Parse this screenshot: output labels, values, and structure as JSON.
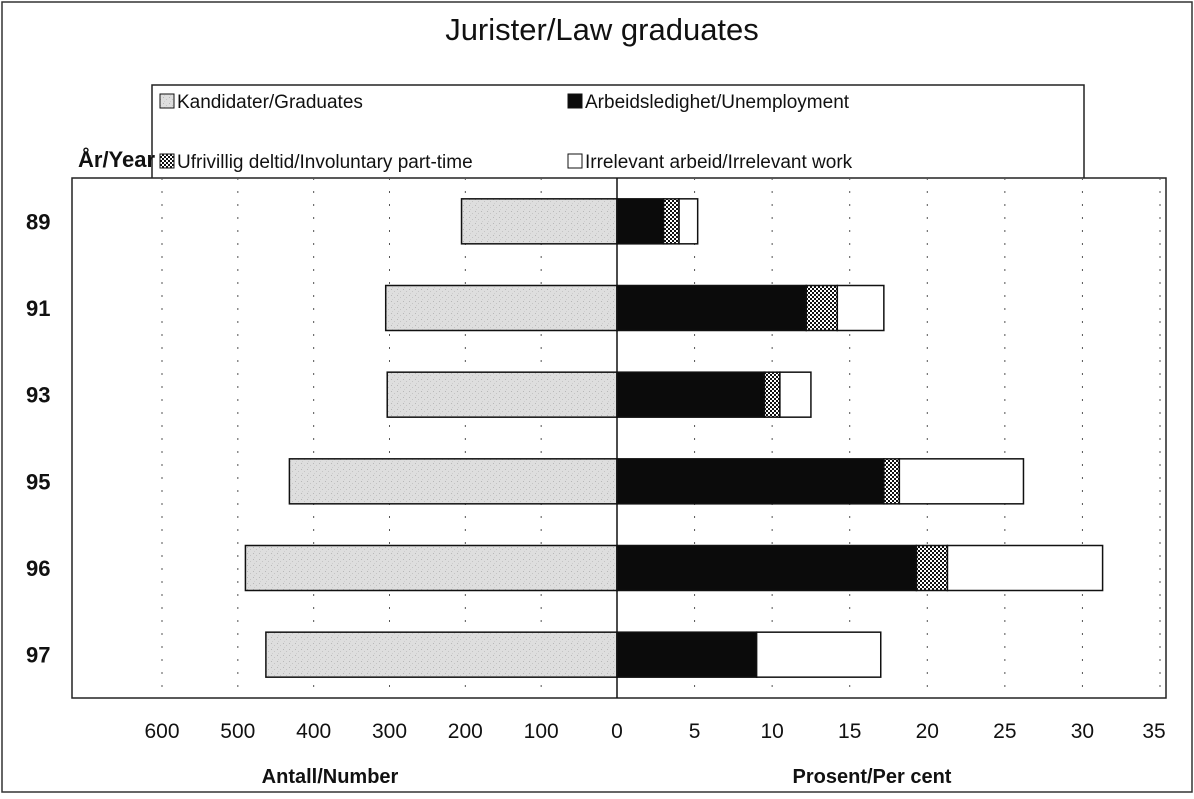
{
  "chart_data": {
    "type": "bar",
    "title": "Jurister/Law graduates",
    "category_axis_label": "År/Year",
    "categories": [
      "89",
      "91",
      "93",
      "95",
      "96",
      "97"
    ],
    "left_panel": {
      "xlabel": "Antall/Number",
      "xlim": [
        0,
        600
      ],
      "ticks": [
        "600",
        "500",
        "400",
        "300",
        "200",
        "100",
        "0"
      ],
      "series": [
        {
          "name": "Kandidater/Graduates",
          "values": [
            205,
            305,
            303,
            432,
            490,
            463
          ]
        }
      ]
    },
    "right_panel": {
      "xlabel": "Prosent/Per cent",
      "xlim": [
        0,
        35
      ],
      "ticks": [
        "0",
        "5",
        "10",
        "15",
        "20",
        "25",
        "30",
        "35"
      ],
      "stacked": true,
      "series": [
        {
          "name": "Arbeidsledighet/Unemployment",
          "values": [
            3,
            12.2,
            9.5,
            17.2,
            19.3,
            9
          ]
        },
        {
          "name": "Ufrivillig deltid/Involuntary part-time",
          "values": [
            1,
            2,
            1,
            1,
            2,
            0
          ]
        },
        {
          "name": "Irrelevant arbeid/Irrelevant work",
          "values": [
            1.2,
            3,
            2,
            8,
            10,
            8
          ]
        }
      ]
    },
    "legend": {
      "position": "top",
      "entries": [
        {
          "label": "Kandidater/Graduates",
          "style": "speckled-grey"
        },
        {
          "label": "Arbeidsledighet/Unemployment",
          "style": "black"
        },
        {
          "label": "Ufrivillig deltid/Involuntary part-time",
          "style": "checkered"
        },
        {
          "label": "Irrelevant arbeid/Irrelevant work",
          "style": "white"
        }
      ]
    },
    "grid": "vertical dotted",
    "colors": {
      "graduates": "#dcdcdc",
      "unemployment": "#0b0b0b",
      "involuntary": "#f2f2f2",
      "irrelevant": "#ffffff"
    }
  }
}
